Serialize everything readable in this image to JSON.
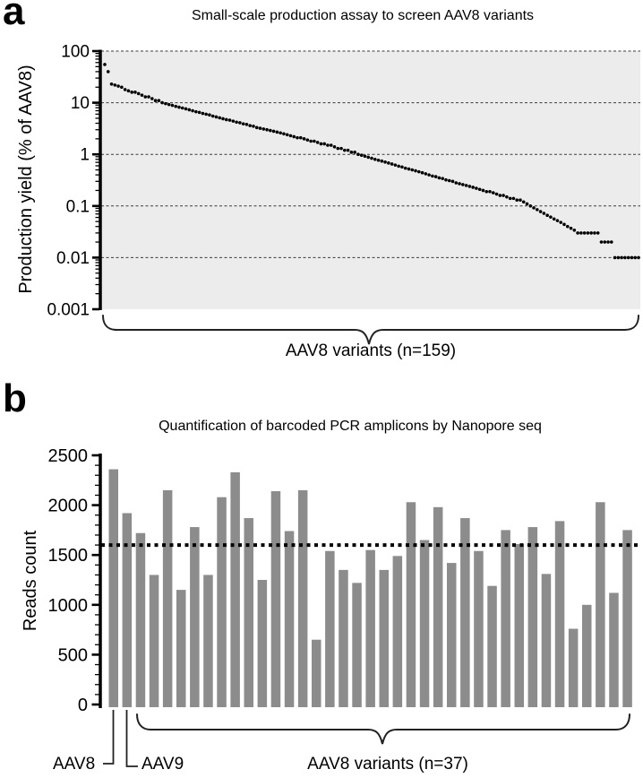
{
  "chart_data": [
    {
      "type": "scatter",
      "panel_letter": "a",
      "title": "Small-scale production assay to screen AAV8 variants",
      "ylabel": "Production yield (% of AAV8)",
      "yscale": "log",
      "ylim": [
        0.001,
        100
      ],
      "ytick_values": [
        100,
        10,
        1,
        0.1,
        0.01,
        0.001
      ],
      "ytick_labels": [
        "100",
        "10",
        "1",
        "0.1",
        "0.01",
        "0.001"
      ],
      "gridline_values": [
        100,
        10,
        1,
        0.1,
        0.01
      ],
      "grid": "dashed horizontal at log decades",
      "group_label": "AAV8 variants (n=159)",
      "n": 159,
      "colors": {
        "point": "#000000",
        "plot_bg": "#ececec",
        "gridline": "#3a3a3a"
      },
      "values": [
        55,
        40,
        23,
        22,
        21,
        20,
        18,
        17,
        16,
        16,
        15,
        14,
        13,
        13,
        12,
        11,
        11,
        10,
        9.6,
        9.2,
        8.9,
        8.5,
        8.2,
        7.9,
        7.6,
        7.3,
        7.0,
        6.7,
        6.5,
        6.2,
        6.0,
        5.8,
        5.5,
        5.3,
        5.1,
        4.9,
        4.7,
        4.6,
        4.4,
        4.2,
        4.1,
        3.9,
        3.8,
        3.6,
        3.5,
        3.3,
        3.2,
        3.1,
        3.0,
        2.9,
        2.8,
        2.7,
        2.6,
        2.5,
        2.4,
        2.3,
        2.2,
        2.1,
        2.1,
        2.0,
        1.9,
        1.8,
        1.8,
        1.7,
        1.6,
        1.6,
        1.5,
        1.5,
        1.4,
        1.3,
        1.3,
        1.2,
        1.2,
        1.1,
        1.1,
        1.0,
        0.96,
        0.92,
        0.88,
        0.84,
        0.8,
        0.77,
        0.74,
        0.71,
        0.68,
        0.65,
        0.62,
        0.59,
        0.57,
        0.54,
        0.52,
        0.5,
        0.48,
        0.46,
        0.44,
        0.42,
        0.4,
        0.38,
        0.37,
        0.35,
        0.34,
        0.32,
        0.31,
        0.3,
        0.28,
        0.27,
        0.26,
        0.25,
        0.24,
        0.23,
        0.22,
        0.21,
        0.2,
        0.19,
        0.19,
        0.18,
        0.17,
        0.16,
        0.16,
        0.15,
        0.14,
        0.14,
        0.13,
        0.13,
        0.12,
        0.11,
        0.1,
        0.092,
        0.085,
        0.078,
        0.072,
        0.066,
        0.061,
        0.056,
        0.052,
        0.048,
        0.044,
        0.04,
        0.037,
        0.034,
        0.03,
        0.03,
        0.03,
        0.03,
        0.03,
        0.03,
        0.03,
        0.02,
        0.02,
        0.02,
        0.02,
        0.01,
        0.01,
        0.01,
        0.01,
        0.01,
        0.01,
        0.01,
        0.01
      ]
    },
    {
      "type": "bar",
      "panel_letter": "b",
      "title": "Quantification of barcoded PCR amplicons by Nanopore seq",
      "ylabel": "Reads count",
      "ylim": [
        0,
        2500
      ],
      "ytick_values": [
        0,
        500,
        1000,
        1500,
        2000,
        2500
      ],
      "ytick_labels": [
        "0",
        "500",
        "1000",
        "1500",
        "2000",
        "2500"
      ],
      "minor_tick_step": 100,
      "reference_line": 1600,
      "reference_line_style": "dotted",
      "colors": {
        "bar": "#8c8c8c",
        "reference_line": "#000000"
      },
      "groups": [
        {
          "label": "AAV8",
          "values": [
            2360
          ]
        },
        {
          "label": "AAV9",
          "values": [
            1920
          ]
        },
        {
          "label": "AAV8 variants (n=37)",
          "values": [
            1720,
            1300,
            2150,
            1150,
            1780,
            1300,
            2080,
            2330,
            1870,
            1250,
            2140,
            1740,
            2150,
            650,
            1540,
            1350,
            1220,
            1550,
            1350,
            1490,
            2030,
            1650,
            1980,
            1420,
            1870,
            1540,
            1190,
            1750,
            1610,
            1780,
            1310,
            1840,
            760,
            1000,
            2030,
            1120,
            1750
          ]
        }
      ]
    }
  ]
}
